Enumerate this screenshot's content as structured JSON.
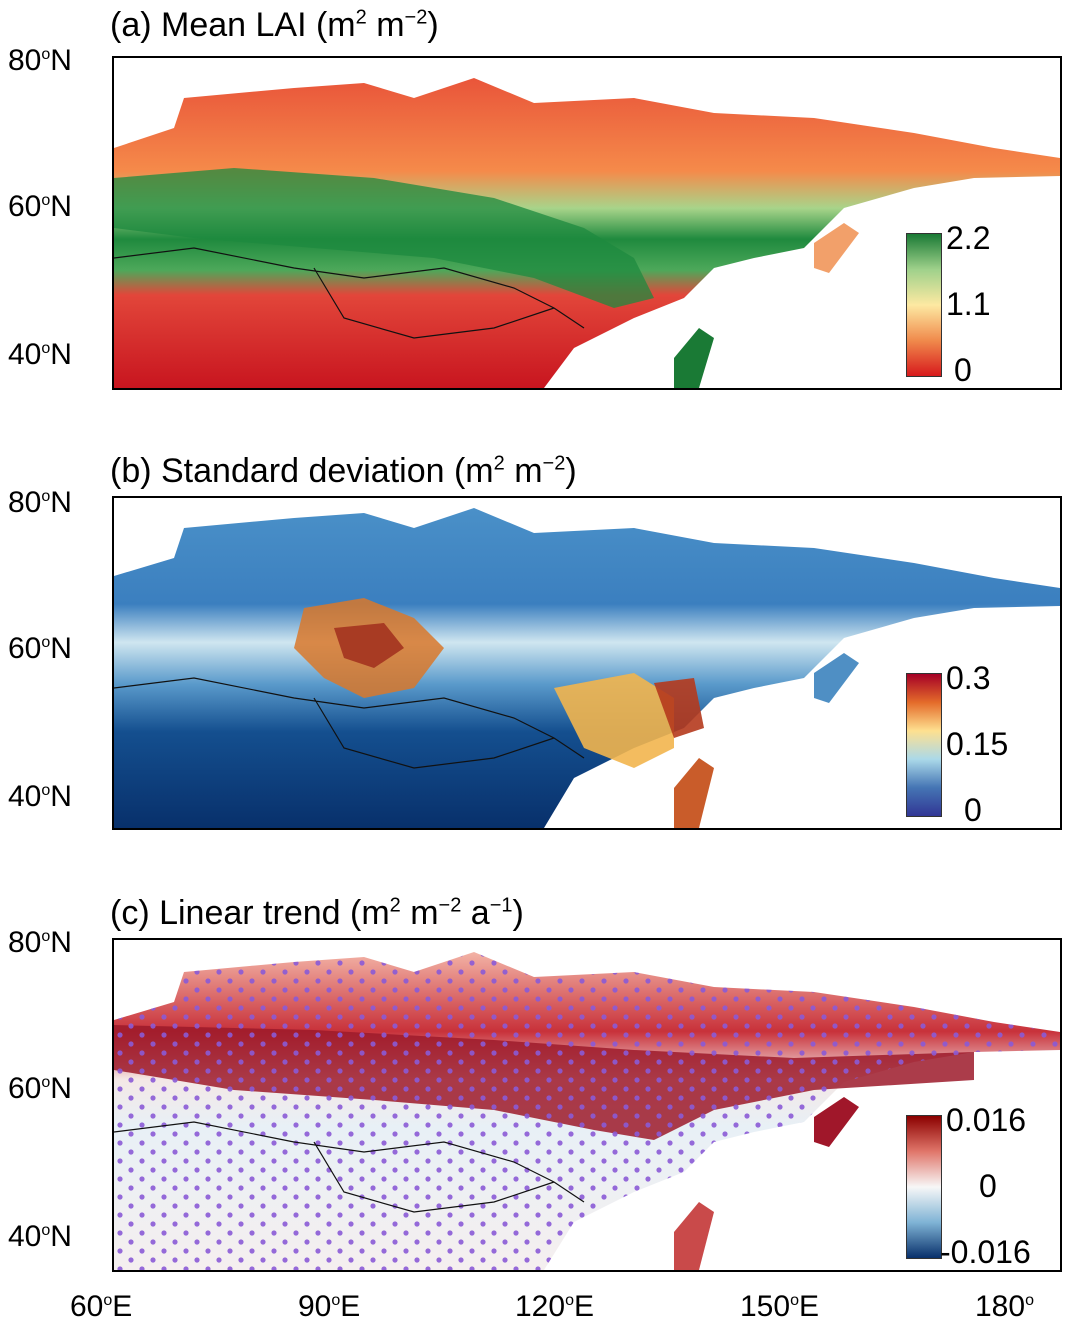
{
  "panels": [
    {
      "title_prefix": "(a) Mean LAI (m",
      "title_unit_exp1": "2",
      "title_mid": " m",
      "title_unit_exp2": "−2",
      "title_suffix": ")",
      "colorbar": {
        "labels": [
          "2.2",
          "1.1",
          "0"
        ],
        "colors": [
          "#1a7a35",
          "#fde9a2",
          "#d7191c"
        ],
        "name": "Mean LAI"
      }
    },
    {
      "title_prefix": "(b) Standard deviation (m",
      "title_unit_exp1": "2",
      "title_mid": " m",
      "title_unit_exp2": "−2",
      "title_suffix": ")",
      "colorbar": {
        "labels": [
          "0.3",
          "0.15",
          "0"
        ],
        "colors": [
          "#a50026",
          "#fee090",
          "#313695"
        ],
        "name": "Standard deviation"
      }
    },
    {
      "title_prefix": "(c) Linear trend (m",
      "title_unit_exp1": "2",
      "title_mid": " m",
      "title_unit_exp2": "−2",
      "title_suffix": " a",
      "title_unit_exp3": "−1",
      "title_suffix2": ")",
      "colorbar": {
        "labels": [
          "0.016",
          "0",
          "-0.016"
        ],
        "colors": [
          "#8b0000",
          "#f7f7f7",
          "#08306b"
        ],
        "name": "Linear trend"
      }
    }
  ],
  "axes": {
    "lat_labels": [
      {
        "deg": "80",
        "sup": "o",
        "hemi": "N"
      },
      {
        "deg": "60",
        "sup": "o",
        "hemi": "N"
      },
      {
        "deg": "40",
        "sup": "o",
        "hemi": "N"
      }
    ],
    "lon_labels": [
      {
        "deg": "60",
        "sup": "o",
        "hemi": "E"
      },
      {
        "deg": "90",
        "sup": "o",
        "hemi": "E"
      },
      {
        "deg": "120",
        "sup": "o",
        "hemi": "E"
      },
      {
        "deg": "150",
        "sup": "o",
        "hemi": "E"
      },
      {
        "deg": "180",
        "sup": "o",
        "hemi": ""
      }
    ]
  },
  "significance_stipple_color": "#8a5ad6",
  "border_color": "#000000"
}
